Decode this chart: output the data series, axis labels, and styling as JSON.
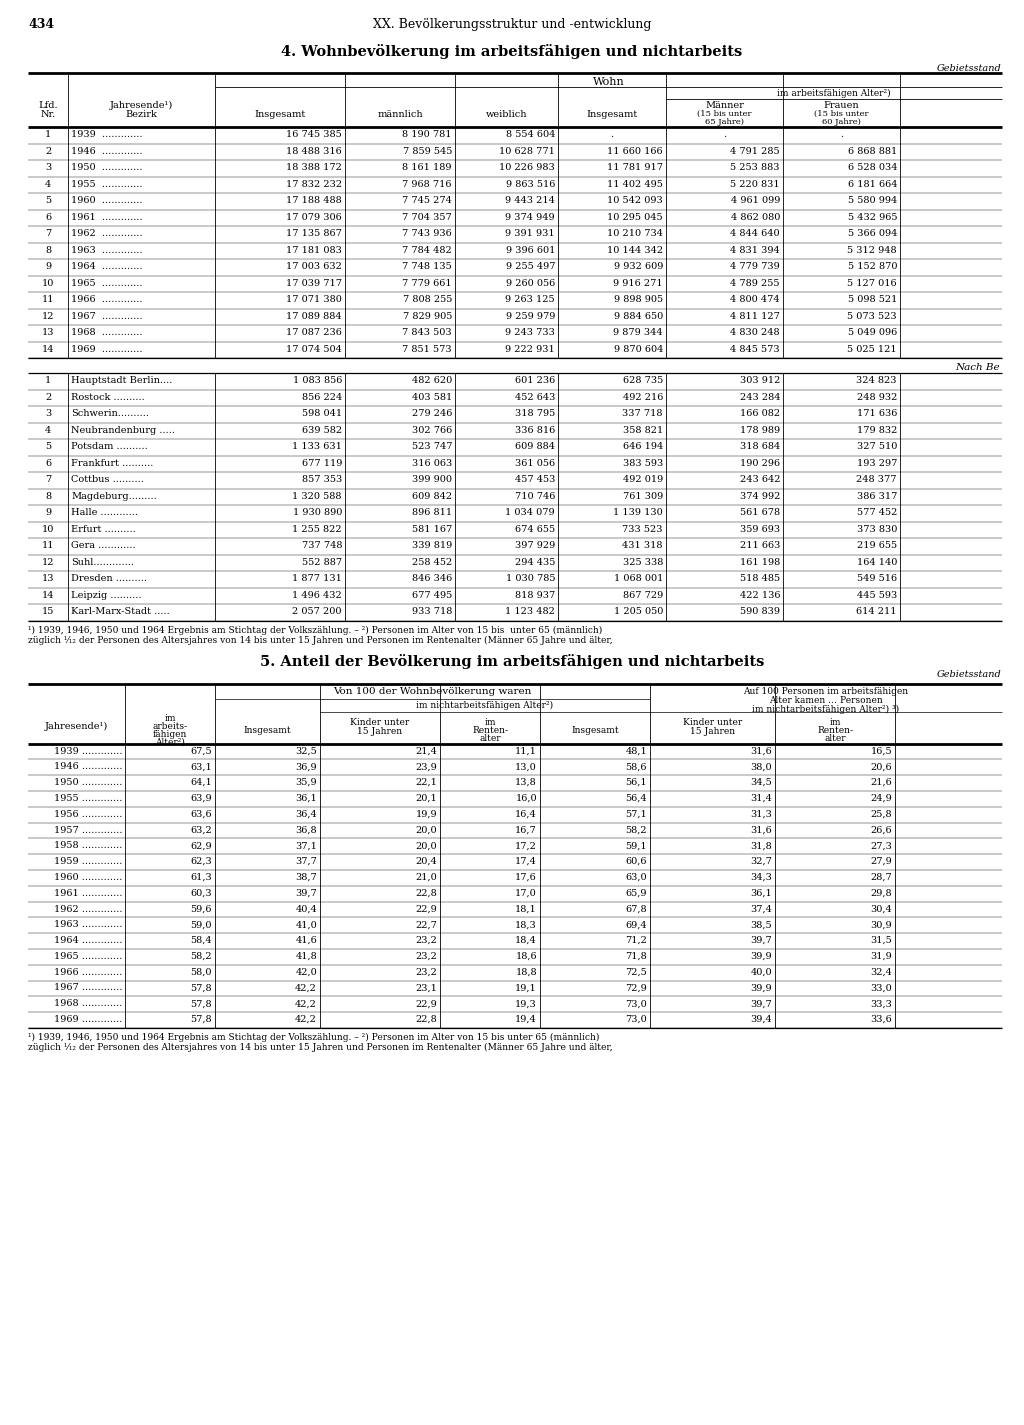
{
  "page_number": "434",
  "chapter_title": "XX. Bevölkerungsstruktur und -entwicklung",
  "section4_title": "4. Wohnbevölkerung im arbeitsfähigen und nichtarbeits",
  "gebietsstand": "Gebietsstand",
  "wohn_label": "Wohn",
  "im_arbeits_label": "im arbeitsfähigen Alter²)",
  "nach_be_label": "Nach Be",
  "table1_data": [
    [
      "1",
      "1939",
      "16 745 385",
      "8 190 781",
      "8 554 604",
      ".",
      ".",
      "."
    ],
    [
      "2",
      "1946",
      "18 488 316",
      "7 859 545",
      "10 628 771",
      "11 660 166",
      "4 791 285",
      "6 868 881"
    ],
    [
      "3",
      "1950",
      "18 388 172",
      "8 161 189",
      "10 226 983",
      "11 781 917",
      "5 253 883",
      "6 528 034"
    ],
    [
      "4",
      "1955",
      "17 832 232",
      "7 968 716",
      "9 863 516",
      "11 402 495",
      "5 220 831",
      "6 181 664"
    ],
    [
      "5",
      "1960",
      "17 188 488",
      "7 745 274",
      "9 443 214",
      "10 542 093",
      "4 961 099",
      "5 580 994"
    ],
    [
      "6",
      "1961",
      "17 079 306",
      "7 704 357",
      "9 374 949",
      "10 295 045",
      "4 862 080",
      "5 432 965"
    ],
    [
      "7",
      "1962",
      "17 135 867",
      "7 743 936",
      "9 391 931",
      "10 210 734",
      "4 844 640",
      "5 366 094"
    ],
    [
      "8",
      "1963",
      "17 181 083",
      "7 784 482",
      "9 396 601",
      "10 144 342",
      "4 831 394",
      "5 312 948"
    ],
    [
      "9",
      "1964",
      "17 003 632",
      "7 748 135",
      "9 255 497",
      "9 932 609",
      "4 779 739",
      "5 152 870"
    ],
    [
      "10",
      "1965",
      "17 039 717",
      "7 779 661",
      "9 260 056",
      "9 916 271",
      "4 789 255",
      "5 127 016"
    ],
    [
      "11",
      "1966",
      "17 071 380",
      "7 808 255",
      "9 263 125",
      "9 898 905",
      "4 800 474",
      "5 098 521"
    ],
    [
      "12",
      "1967",
      "17 089 884",
      "7 829 905",
      "9 259 979",
      "9 884 650",
      "4 811 127",
      "5 073 523"
    ],
    [
      "13",
      "1968",
      "17 087 236",
      "7 843 503",
      "9 243 733",
      "9 879 344",
      "4 830 248",
      "5 049 096"
    ],
    [
      "14",
      "1969",
      "17 074 504",
      "7 851 573",
      "9 222 931",
      "9 870 604",
      "4 845 573",
      "5 025 121"
    ]
  ],
  "table2_data": [
    [
      "1",
      "Hauptstadt Berlin....",
      "1 083 856",
      "482 620",
      "601 236",
      "628 735",
      "303 912",
      "324 823"
    ],
    [
      "2",
      "Rostock ..........",
      "856 224",
      "403 581",
      "452 643",
      "492 216",
      "243 284",
      "248 932"
    ],
    [
      "3",
      "Schwerin..........",
      "598 041",
      "279 246",
      "318 795",
      "337 718",
      "166 082",
      "171 636"
    ],
    [
      "4",
      "Neubrandenburg .....",
      "639 582",
      "302 766",
      "336 816",
      "358 821",
      "178 989",
      "179 832"
    ],
    [
      "5",
      "Potsdam ..........",
      "1 133 631",
      "523 747",
      "609 884",
      "646 194",
      "318 684",
      "327 510"
    ],
    [
      "6",
      "Frankfurt ..........",
      "677 119",
      "316 063",
      "361 056",
      "383 593",
      "190 296",
      "193 297"
    ],
    [
      "7",
      "Cottbus ..........",
      "857 353",
      "399 900",
      "457 453",
      "492 019",
      "243 642",
      "248 377"
    ],
    [
      "8",
      "Magdeburg.........",
      "1 320 588",
      "609 842",
      "710 746",
      "761 309",
      "374 992",
      "386 317"
    ],
    [
      "9",
      "Halle ............",
      "1 930 890",
      "896 811",
      "1 034 079",
      "1 139 130",
      "561 678",
      "577 452"
    ],
    [
      "10",
      "Erfurt ..........",
      "1 255 822",
      "581 167",
      "674 655",
      "733 523",
      "359 693",
      "373 830"
    ],
    [
      "11",
      "Gera ............",
      "737 748",
      "339 819",
      "397 929",
      "431 318",
      "211 663",
      "219 655"
    ],
    [
      "12",
      "Suhl.............",
      "552 887",
      "258 452",
      "294 435",
      "325 338",
      "161 198",
      "164 140"
    ],
    [
      "13",
      "Dresden ..........",
      "1 877 131",
      "846 346",
      "1 030 785",
      "1 068 001",
      "518 485",
      "549 516"
    ],
    [
      "14",
      "Leipzig ..........",
      "1 496 432",
      "677 495",
      "818 937",
      "867 729",
      "422 136",
      "445 593"
    ],
    [
      "15",
      "Karl-Marx-Stadt .....",
      "2 057 200",
      "933 718",
      "1 123 482",
      "1 205 050",
      "590 839",
      "614 211"
    ]
  ],
  "footnote1": "¹) 1939, 1946, 1950 und 1964 Ergebnis am Stichtag der Volkszählung. – ²) Personen im Alter von 15 bis  unter 65 (männlich)",
  "footnote2": "züglich ¹⁄₁₂ der Personen des Altersjahres von 14 bis unter 15 Jahren und Personen im Rentenalter (Männer 65 Jahre und älter,",
  "section5_title": "5. Anteil der Bevölkerung im arbeitsfähigen und nichtarbeits",
  "gebietsstand2": "Gebietsstand",
  "table3_data": [
    [
      "1939",
      "67,5",
      "32,5",
      "21,4",
      "11,1",
      "48,1",
      "31,6",
      "16,5"
    ],
    [
      "1946",
      "63,1",
      "36,9",
      "23,9",
      "13,0",
      "58,6",
      "38,0",
      "20,6"
    ],
    [
      "1950",
      "64,1",
      "35,9",
      "22,1",
      "13,8",
      "56,1",
      "34,5",
      "21,6"
    ],
    [
      "1955",
      "63,9",
      "36,1",
      "20,1",
      "16,0",
      "56,4",
      "31,4",
      "24,9"
    ],
    [
      "1956",
      "63,6",
      "36,4",
      "19,9",
      "16,4",
      "57,1",
      "31,3",
      "25,8"
    ],
    [
      "1957",
      "63,2",
      "36,8",
      "20,0",
      "16,7",
      "58,2",
      "31,6",
      "26,6"
    ],
    [
      "1958",
      "62,9",
      "37,1",
      "20,0",
      "17,2",
      "59,1",
      "31,8",
      "27,3"
    ],
    [
      "1959",
      "62,3",
      "37,7",
      "20,4",
      "17,4",
      "60,6",
      "32,7",
      "27,9"
    ],
    [
      "1960",
      "61,3",
      "38,7",
      "21,0",
      "17,6",
      "63,0",
      "34,3",
      "28,7"
    ],
    [
      "1961",
      "60,3",
      "39,7",
      "22,8",
      "17,0",
      "65,9",
      "36,1",
      "29,8"
    ],
    [
      "1962",
      "59,6",
      "40,4",
      "22,9",
      "18,1",
      "67,8",
      "37,4",
      "30,4"
    ],
    [
      "1963",
      "59,0",
      "41,0",
      "22,7",
      "18,3",
      "69,4",
      "38,5",
      "30,9"
    ],
    [
      "1964",
      "58,4",
      "41,6",
      "23,2",
      "18,4",
      "71,2",
      "39,7",
      "31,5"
    ],
    [
      "1965",
      "58,2",
      "41,8",
      "23,2",
      "18,6",
      "71,8",
      "39,9",
      "31,9"
    ],
    [
      "1966",
      "58,0",
      "42,0",
      "23,2",
      "18,8",
      "72,5",
      "40,0",
      "32,4"
    ],
    [
      "1967",
      "57,8",
      "42,2",
      "23,1",
      "19,1",
      "72,9",
      "39,9",
      "33,0"
    ],
    [
      "1968",
      "57,8",
      "42,2",
      "22,9",
      "19,3",
      "73,0",
      "39,7",
      "33,3"
    ],
    [
      "1969",
      "57,8",
      "42,2",
      "22,8",
      "19,4",
      "73,0",
      "39,4",
      "33,6"
    ]
  ],
  "footnote3": "¹) 1939, 1946, 1950 und 1964 Ergebnis am Stichtag der Volkszählung. – ²) Personen im Alter von 15 bis unter 65 (männlich)",
  "footnote4": "züglich ¹⁄₁₂ der Personen des Altersjahres von 14 bis unter 15 Jahren und Personen im Rentenalter (Männer 65 Jahre und älter,"
}
